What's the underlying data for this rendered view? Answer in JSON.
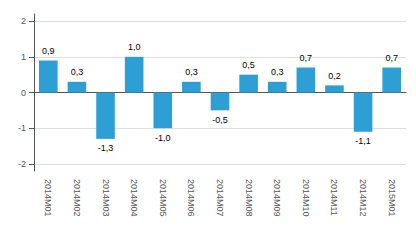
{
  "chart_data": {
    "type": "bar",
    "categories": [
      "2014M01",
      "2014M02",
      "2014M03",
      "2014M04",
      "2014M05",
      "2014M06",
      "2014M07",
      "2014M08",
      "2014M09",
      "2014M10",
      "2014M11",
      "2014M12",
      "2015M01"
    ],
    "values": [
      0.9,
      0.3,
      -1.3,
      1.0,
      -1.0,
      0.3,
      -0.5,
      0.5,
      0.3,
      0.7,
      0.2,
      -1.1,
      0.7
    ],
    "value_labels": [
      "0,9",
      "0,3",
      "-1,3",
      "1,0",
      "-1,0",
      "0,3",
      "-0,5",
      "0,5",
      "0,3",
      "0,7",
      "0,2",
      "-1,1",
      "0,7"
    ],
    "data_labels": true,
    "color": "#2e9fd4",
    "ylim": [
      -2.2,
      2.2
    ],
    "yticks": [
      -2,
      -1,
      0,
      1,
      2
    ],
    "grid": true
  }
}
